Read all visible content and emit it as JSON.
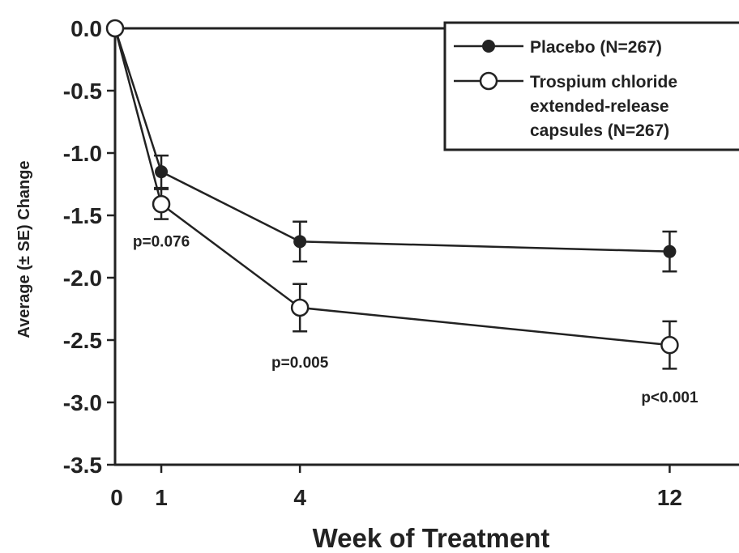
{
  "chart_data": {
    "type": "line",
    "xlabel": "Week of Treatment",
    "ylabel": "Average (± SE) Change",
    "xlim": [
      0,
      13.5
    ],
    "ylim": [
      -3.5,
      0.0
    ],
    "x_ticks": [
      "0",
      "1",
      "4",
      "12"
    ],
    "y_ticks": [
      "0.0",
      "-0.5",
      "-1.0",
      "-1.5",
      "-2.0",
      "-2.5",
      "-3.0",
      "-3.5"
    ],
    "grid": false,
    "legend_position": "top-right",
    "series": [
      {
        "name": "Placebo (N=267)",
        "marker": "filled-circle",
        "color": "#222222",
        "x": [
          0,
          1,
          4,
          12
        ],
        "y": [
          0.0,
          -1.15,
          -1.71,
          -1.79
        ],
        "se": [
          0,
          0.13,
          0.16,
          0.16
        ]
      },
      {
        "name": "Trospium chloride extended-release capsules (N=267)",
        "name_lines": [
          "Trospium chloride",
          "extended-release",
          "capsules (N=267)"
        ],
        "marker": "open-circle",
        "color": "#222222",
        "x": [
          0,
          1,
          4,
          12
        ],
        "y": [
          0.0,
          -1.41,
          -2.24,
          -2.54
        ],
        "se": [
          0,
          0.12,
          0.19,
          0.19
        ]
      }
    ],
    "annotations": [
      {
        "text": "p=0.076",
        "x": 1,
        "y": -1.75
      },
      {
        "text": "p=0.005",
        "x": 4,
        "y": -2.72
      },
      {
        "text": "p<0.001",
        "x": 12,
        "y": -3.0
      }
    ]
  }
}
